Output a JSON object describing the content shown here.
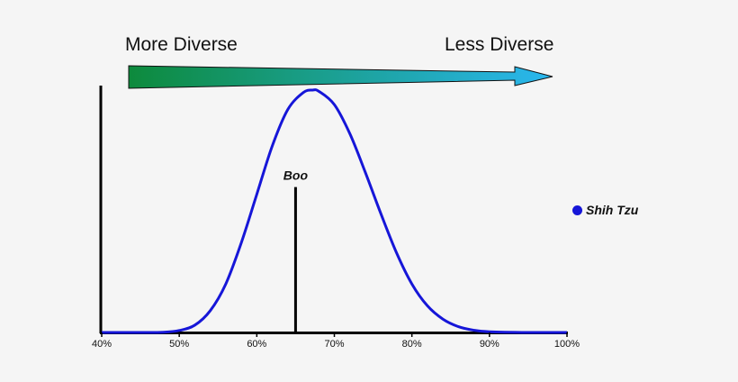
{
  "header": {
    "left_label": "More Diverse",
    "right_label": "Less Diverse"
  },
  "colors": {
    "arrow_start": "#0d8a3c",
    "arrow_end": "#2ab7f0",
    "curve": "#1616d8",
    "axis": "#000000"
  },
  "chart_data": {
    "type": "line",
    "title": "",
    "xlabel": "",
    "ylabel": "",
    "xlim": [
      40,
      100
    ],
    "x_ticks": [
      "40%",
      "50%",
      "60%",
      "70%",
      "80%",
      "90%",
      "100%"
    ],
    "x_tick_values": [
      40,
      50,
      60,
      70,
      80,
      90,
      100
    ],
    "grid": false,
    "legend_position": "right",
    "series": [
      {
        "name": "Shih Tzu",
        "color": "#1616d8",
        "x": [
          40,
          45,
          48,
          50,
          52,
          54,
          56,
          58,
          60,
          62,
          64,
          66,
          67.2,
          68,
          70,
          72,
          74,
          76,
          78,
          80,
          82,
          84,
          86,
          88,
          90,
          95,
          100
        ],
        "y": [
          0,
          0,
          0.001,
          0.008,
          0.03,
          0.09,
          0.2,
          0.37,
          0.57,
          0.77,
          0.92,
          0.99,
          1.0,
          0.995,
          0.94,
          0.82,
          0.66,
          0.49,
          0.33,
          0.2,
          0.11,
          0.055,
          0.024,
          0.009,
          0.003,
          0,
          0
        ]
      }
    ],
    "annotations": [
      {
        "label": "Boo",
        "x": 65,
        "marker_height": 0.6
      }
    ]
  }
}
